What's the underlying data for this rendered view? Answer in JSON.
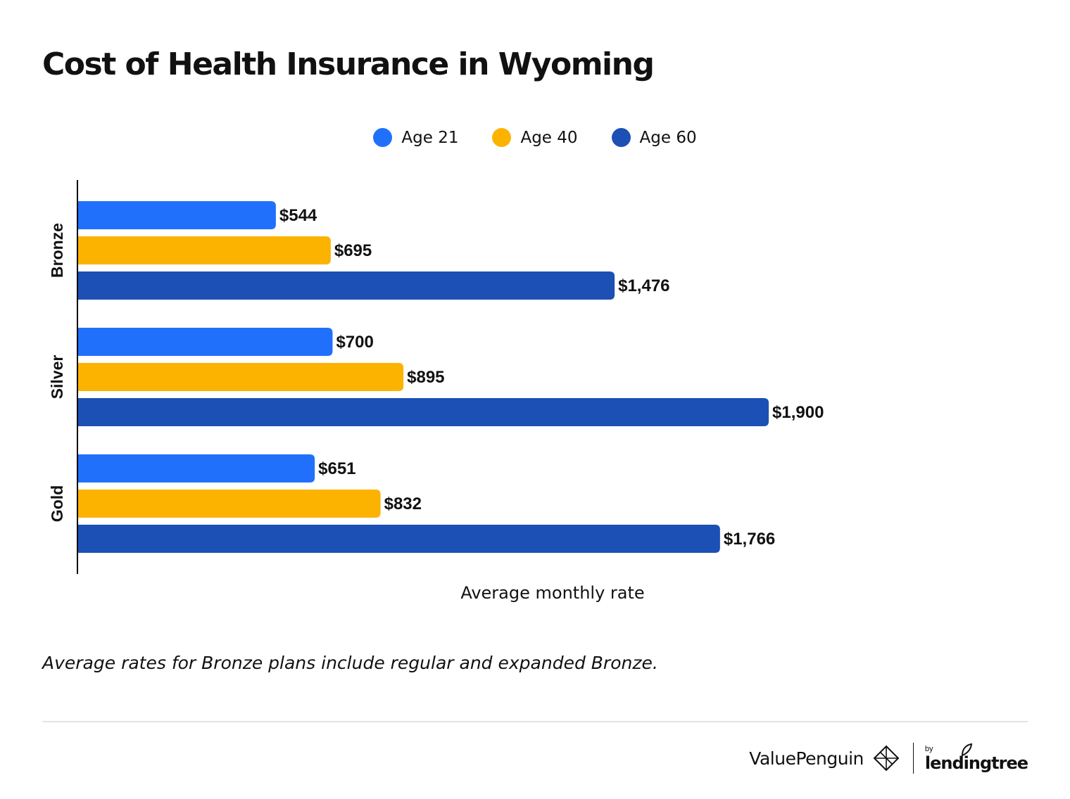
{
  "header": {
    "title": "Cost of Health Insurance in Wyoming"
  },
  "legend": [
    {
      "label": "Age 21",
      "color": "#2170fb"
    },
    {
      "label": "Age 40",
      "color": "#fbb300"
    },
    {
      "label": "Age 60",
      "color": "#1c50b5"
    }
  ],
  "chart_data": {
    "type": "bar",
    "orientation": "horizontal",
    "title": "Cost of Health Insurance in Wyoming",
    "categories": [
      "Bronze",
      "Silver",
      "Gold"
    ],
    "series": [
      {
        "name": "Age 21",
        "color": "#2170fb",
        "values": [
          544,
          700,
          651
        ],
        "labels": [
          "$544",
          "$700",
          "$651"
        ]
      },
      {
        "name": "Age 40",
        "color": "#fbb300",
        "values": [
          695,
          895,
          832
        ],
        "labels": [
          "$695",
          "$895",
          "$832"
        ]
      },
      {
        "name": "Age 60",
        "color": "#1c50b5",
        "values": [
          1476,
          1900,
          1766
        ],
        "labels": [
          "$1,476",
          "$1,900",
          "$1,766"
        ]
      }
    ],
    "xlabel": "Average monthly rate",
    "ylabel": "",
    "xlim": [
      0,
      2264
    ],
    "grid": false,
    "legend_position": "top-center"
  },
  "footnote": "Average rates for Bronze plans include regular and expanded Bronze.",
  "branding": {
    "primary": "ValuePenguin",
    "by": "by",
    "secondary": "lendingtree",
    "logo_icon": "valuepenguin-diamond-icon",
    "leaf_icon": "lendingtree-leaf-icon"
  }
}
